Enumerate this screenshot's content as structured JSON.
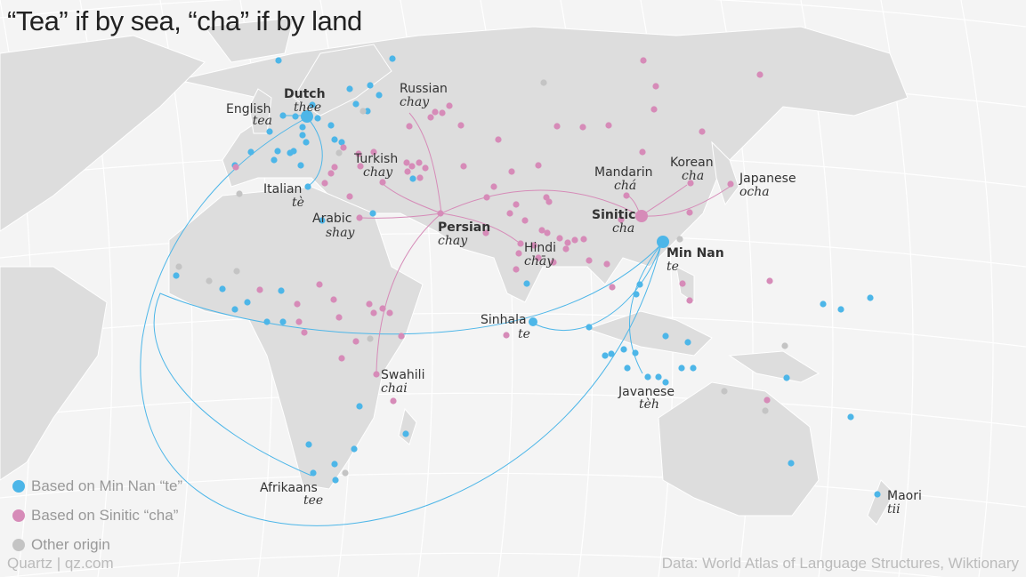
{
  "title": "“Tea” if by sea, “cha” if by land",
  "colors": {
    "te": "#4db6e8",
    "cha": "#d68bb8",
    "other": "#c4c4c4",
    "land": "#dddddd",
    "ocean": "#f4f4f4"
  },
  "legend": [
    {
      "label": "Based on Min Nan “te”",
      "key": "te"
    },
    {
      "label": "Based on Sinitic “cha”",
      "key": "cha"
    },
    {
      "label": "Other origin",
      "key": "other"
    }
  ],
  "labels": {
    "english": {
      "name": "English",
      "word": "tea"
    },
    "dutch": {
      "name": "Dutch",
      "word": "thee"
    },
    "italian": {
      "name": "Italian",
      "word": "tè"
    },
    "russian": {
      "name": "Russian",
      "word": "chay"
    },
    "turkish": {
      "name": "Turkish",
      "word": "chay"
    },
    "arabic": {
      "name": "Arabic",
      "word": "shay"
    },
    "persian": {
      "name": "Persian",
      "word": "chay"
    },
    "hindi": {
      "name": "Hindi",
      "word": "chāy"
    },
    "mandarin": {
      "name": "Mandarin",
      "word": "chá"
    },
    "korean": {
      "name": "Korean",
      "word": "cha"
    },
    "japanese": {
      "name": "Japanese",
      "word": "ocha"
    },
    "sinitic": {
      "name": "Sinitic",
      "word": "cha"
    },
    "minnan": {
      "name": "Min Nan",
      "word": "te"
    },
    "sinhala": {
      "name": "Sinhala",
      "word": "te"
    },
    "swahili": {
      "name": "Swahili",
      "word": "chai"
    },
    "javanese": {
      "name": "Javanese",
      "word": "tèh"
    },
    "afrikaans": {
      "name": "Afrikaans",
      "word": "tee"
    },
    "maori": {
      "name": "Maori",
      "word": "tii"
    }
  },
  "footer": {
    "credit": "Quartz | qz.com",
    "source": "Data: World Atlas of Language Structures, Wiktionary"
  }
}
